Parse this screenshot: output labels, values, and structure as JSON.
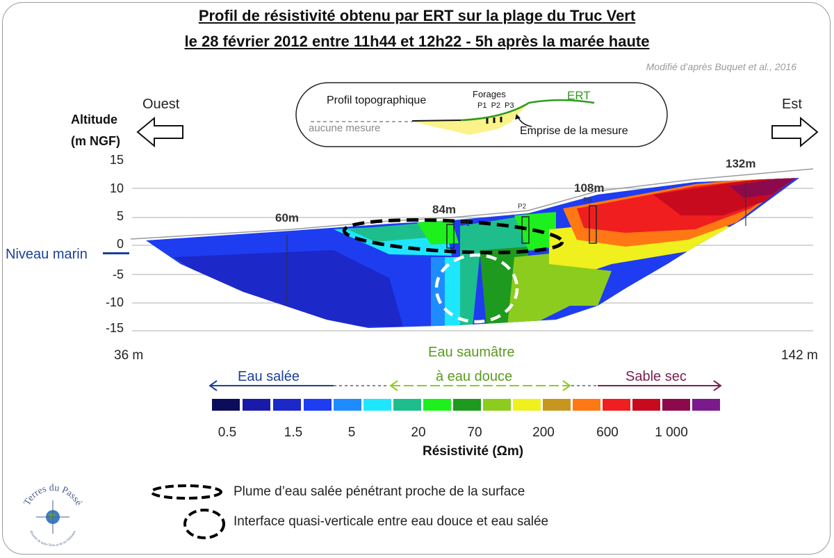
{
  "title": {
    "line1": "Profil de résistivité obtenu par ERT sur la plage du Truc Vert",
    "line2": "le 28 février 2012 entre 11h44 et 12h22 - 5h après la marée haute"
  },
  "credit": "Modifié d’après Buquet et al., 2016",
  "directions": {
    "west": "Ouest",
    "east": "Est"
  },
  "axis": {
    "title_line1": "Altitude",
    "title_line2": "(m NGF)",
    "ticks": [
      "15",
      "10",
      "5",
      "0",
      "-5",
      "-10",
      "-15"
    ]
  },
  "sea_level_label": "Niveau marin",
  "distances": {
    "start": "36 m",
    "end": "142 m",
    "m60": "60m",
    "m84": "84m",
    "m108": "108m",
    "m132": "132m"
  },
  "boreholes": {
    "p1": "P1",
    "p2": "P2",
    "p3": "P3"
  },
  "inset": {
    "topo_label": "Profil topographique",
    "no_measure": "aucune mesure",
    "forages": "Forages",
    "p_labels": "P1  P2  P3",
    "ert": "ERT",
    "emprise": "Emprise de la mesure"
  },
  "categories": {
    "salt": "Eau salée",
    "brackish_line1": "Eau saumâtre",
    "brackish_line2": "à eau douce",
    "dry_sand": "Sable sec"
  },
  "category_colors": {
    "salt": "#1a3f9a",
    "brackish": "#7ab51d",
    "dry_sand": "#7a1f4e"
  },
  "scale": {
    "colors": [
      "#0c0c5a",
      "#1a1aa8",
      "#1c28c8",
      "#1e3cf0",
      "#1e8cff",
      "#1ee6ff",
      "#1ebe8c",
      "#1ef01e",
      "#1e9a1e",
      "#8ccc1e",
      "#f0f01e",
      "#c8961e",
      "#ff7814",
      "#f01e1e",
      "#c80a1e",
      "#8c0a4b",
      "#7a1a8c"
    ],
    "values": [
      "0.5",
      "1.5",
      "5",
      "20",
      "70",
      "200",
      "600",
      "1 000"
    ],
    "title": "Résistivité (Ωm)"
  },
  "legend": {
    "plume": "Plume d’eau salée pénétrant proche de la surface",
    "interface": "Interface quasi-verticale entre eau douce et eau salée"
  },
  "logo": {
    "name": "Terres du Passé",
    "tagline": "Histoire de notre Terre et de ses habitants"
  }
}
